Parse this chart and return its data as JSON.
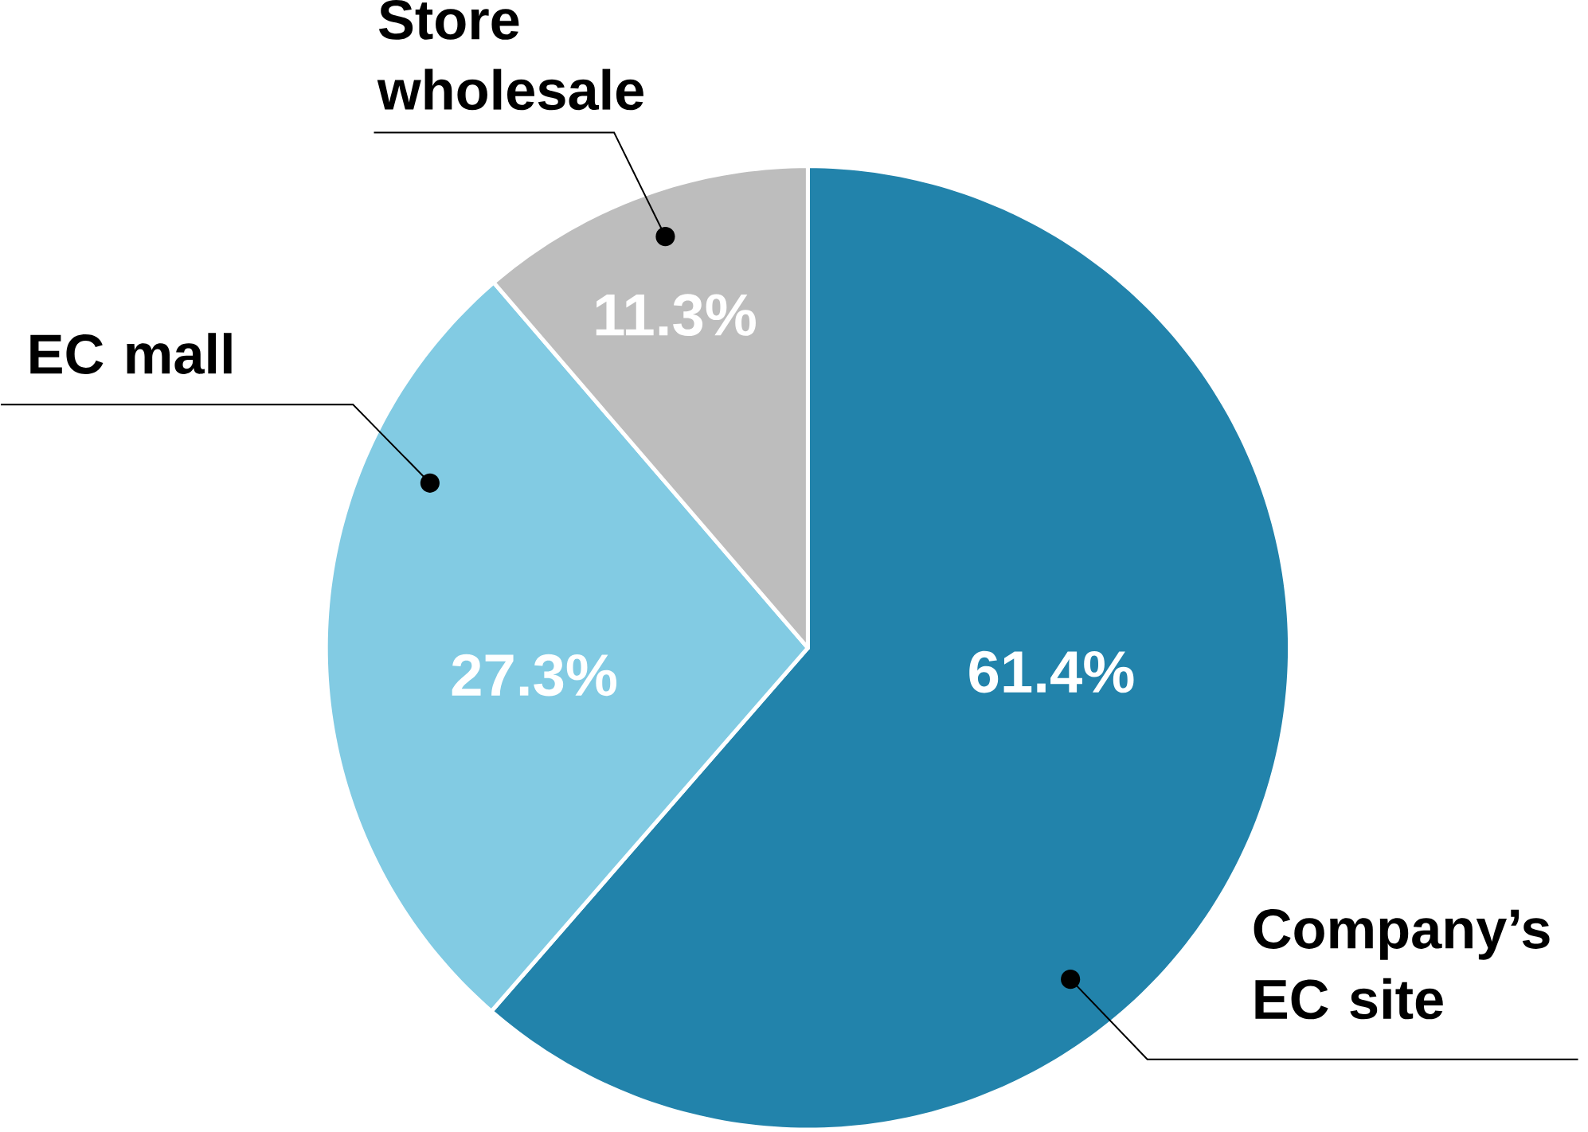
{
  "chart_data": {
    "type": "pie",
    "categories": [
      "Company’s EC site",
      "EC mall",
      "Store wholesale"
    ],
    "values": [
      61.4,
      27.3,
      11.3
    ],
    "colors": [
      "#2283ab",
      "#82cbe3",
      "#bdbdbd"
    ],
    "value_labels": [
      "61.4%",
      "27.3%",
      "11.3%"
    ]
  }
}
